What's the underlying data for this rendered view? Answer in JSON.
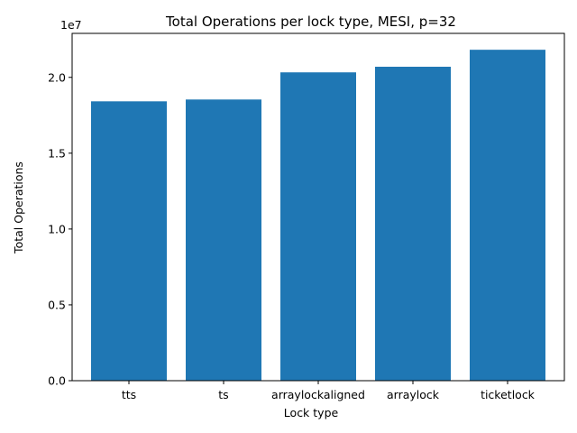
{
  "chart_data": {
    "type": "bar",
    "title": "Total Operations per lock type, MESI, p=32",
    "xlabel": "Lock type",
    "ylabel": "Total Operations",
    "y_offset_label": "1e7",
    "y_scale": 10000000,
    "categories": [
      "tts",
      "ts",
      "arraylockaligned",
      "arraylock",
      "ticketlock"
    ],
    "values": [
      18420000,
      18540000,
      20330000,
      20700000,
      21820000
    ],
    "ylim": [
      0,
      22900000
    ],
    "yticks": [
      0,
      5000000,
      10000000,
      15000000,
      20000000
    ],
    "ytick_labels": [
      "0.0",
      "0.5",
      "1.0",
      "1.5",
      "2.0"
    ],
    "bar_color": "#1f77b4",
    "grid": false
  }
}
